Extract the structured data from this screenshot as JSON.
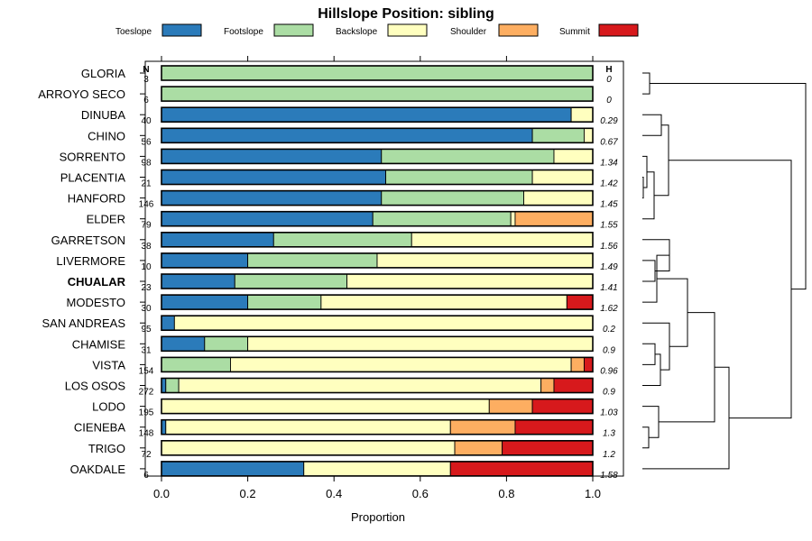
{
  "chart_data": {
    "type": "bar",
    "stacked": true,
    "orientation": "horizontal",
    "title": "Hillslope Position: sibling",
    "xlabel": "Proportion",
    "ylabel": "",
    "xlim": [
      0,
      1
    ],
    "xticks": [
      "0.0",
      "0.2",
      "0.4",
      "0.6",
      "0.8",
      "1.0"
    ],
    "n_header": "N",
    "h_header": "H",
    "highlight": "CHUALAR",
    "legend_position": "top",
    "series": [
      {
        "name": "Toeslope",
        "color": "#2b7bba"
      },
      {
        "name": "Footslope",
        "color": "#abdda4"
      },
      {
        "name": "Backslope",
        "color": "#ffffbf"
      },
      {
        "name": "Shoulder",
        "color": "#fdae61"
      },
      {
        "name": "Summit",
        "color": "#d7191c"
      }
    ],
    "rows": [
      {
        "name": "GLORIA",
        "n": "3",
        "h": "0",
        "values": [
          0,
          1,
          0,
          0,
          0
        ]
      },
      {
        "name": "ARROYO SECO",
        "n": "6",
        "h": "0",
        "values": [
          0,
          1,
          0,
          0,
          0
        ]
      },
      {
        "name": "DINUBA",
        "n": "40",
        "h": "0.29",
        "values": [
          0.95,
          0,
          0.05,
          0,
          0
        ]
      },
      {
        "name": "CHINO",
        "n": "56",
        "h": "0.67",
        "values": [
          0.86,
          0.12,
          0.02,
          0,
          0
        ]
      },
      {
        "name": "SORRENTO",
        "n": "98",
        "h": "1.34",
        "values": [
          0.51,
          0.4,
          0.09,
          0,
          0
        ]
      },
      {
        "name": "PLACENTIA",
        "n": "21",
        "h": "1.42",
        "values": [
          0.52,
          0.34,
          0.14,
          0,
          0
        ]
      },
      {
        "name": "HANFORD",
        "n": "146",
        "h": "1.45",
        "values": [
          0.51,
          0.33,
          0.16,
          0,
          0
        ]
      },
      {
        "name": "ELDER",
        "n": "79",
        "h": "1.55",
        "values": [
          0.49,
          0.32,
          0.01,
          0.18,
          0
        ]
      },
      {
        "name": "GARRETSON",
        "n": "38",
        "h": "1.56",
        "values": [
          0.26,
          0.32,
          0.42,
          0,
          0
        ]
      },
      {
        "name": "LIVERMORE",
        "n": "10",
        "h": "1.49",
        "values": [
          0.2,
          0.3,
          0.5,
          0,
          0
        ]
      },
      {
        "name": "CHUALAR",
        "n": "23",
        "h": "1.41",
        "values": [
          0.17,
          0.26,
          0.57,
          0,
          0
        ]
      },
      {
        "name": "MODESTO",
        "n": "30",
        "h": "1.62",
        "values": [
          0.2,
          0.17,
          0.57,
          0,
          0.06
        ]
      },
      {
        "name": "SAN ANDREAS",
        "n": "95",
        "h": "0.2",
        "values": [
          0.03,
          0,
          0.97,
          0,
          0
        ]
      },
      {
        "name": "CHAMISE",
        "n": "31",
        "h": "0.9",
        "values": [
          0.1,
          0.1,
          0.8,
          0,
          0
        ]
      },
      {
        "name": "VISTA",
        "n": "154",
        "h": "0.96",
        "values": [
          0,
          0.16,
          0.79,
          0.03,
          0.02
        ]
      },
      {
        "name": "LOS OSOS",
        "n": "272",
        "h": "0.9",
        "values": [
          0.01,
          0.03,
          0.84,
          0.03,
          0.09
        ]
      },
      {
        "name": "LODO",
        "n": "195",
        "h": "1.03",
        "values": [
          0,
          0,
          0.76,
          0.1,
          0.14
        ]
      },
      {
        "name": "CIENEBA",
        "n": "148",
        "h": "1.3",
        "values": [
          0.01,
          0,
          0.66,
          0.15,
          0.18
        ]
      },
      {
        "name": "TRIGO",
        "n": "72",
        "h": "1.2",
        "values": [
          0,
          0,
          0.68,
          0.11,
          0.21
        ]
      },
      {
        "name": "OAKDALE",
        "n": "6",
        "h": "1.58",
        "values": [
          0.33,
          0,
          0.34,
          0,
          0.33
        ]
      }
    ]
  }
}
